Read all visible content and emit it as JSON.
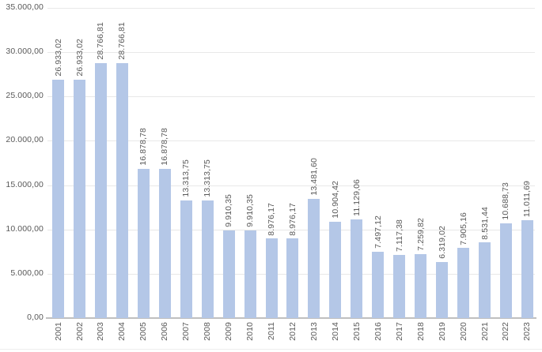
{
  "chart_data": {
    "type": "bar",
    "title": "",
    "xlabel": "",
    "ylabel": "",
    "grid": true,
    "legend": false,
    "ylim": [
      0,
      35000
    ],
    "categories": [
      "2001",
      "2002",
      "2003",
      "2004",
      "2005",
      "2006",
      "2007",
      "2008",
      "2009",
      "2010",
      "2011",
      "2012",
      "2013",
      "2014",
      "2015",
      "2016",
      "2017",
      "2018",
      "2019",
      "2020",
      "2021",
      "2022",
      "2023"
    ],
    "values": [
      26933.02,
      26933.02,
      28766.81,
      28766.81,
      16878.78,
      16878.78,
      13313.75,
      13313.75,
      9910.35,
      9910.35,
      8976.17,
      8976.17,
      13481.6,
      10904.42,
      11129.06,
      7497.12,
      7117.38,
      7259.82,
      6319.02,
      7905.16,
      8531.44,
      10688.73,
      11011.69
    ],
    "data_labels": [
      "26.933,02",
      "26.933,02",
      "28.766,81",
      "28.766,81",
      "16.878,78",
      "16.878,78",
      "13.313,75",
      "13.313,75",
      "9.910,35",
      "9.910,35",
      "8.976,17",
      "8.976,17",
      "13.481,60",
      "10.904,42",
      "11.129,06",
      "7.497,12",
      "7.117,38",
      "7.259,82",
      "6.319,02",
      "7.905,16",
      "8.531,44",
      "10.688,73",
      "11.011,69"
    ],
    "y_tick_values": [
      0,
      5000,
      10000,
      15000,
      20000,
      25000,
      30000,
      35000
    ],
    "y_tick_labels": [
      "0,00",
      "5.000,00",
      "10.000,00",
      "15.000,00",
      "20.000,00",
      "25.000,00",
      "30.000,00",
      "35.000,00"
    ],
    "colors": {
      "bar_fill": "#B4C7E7",
      "gridline": "#E8E8E8",
      "axis_line": "#BFBFBF",
      "text": "#595959",
      "page_rule": "#EDEDED",
      "background": "#FFFFFF"
    }
  }
}
